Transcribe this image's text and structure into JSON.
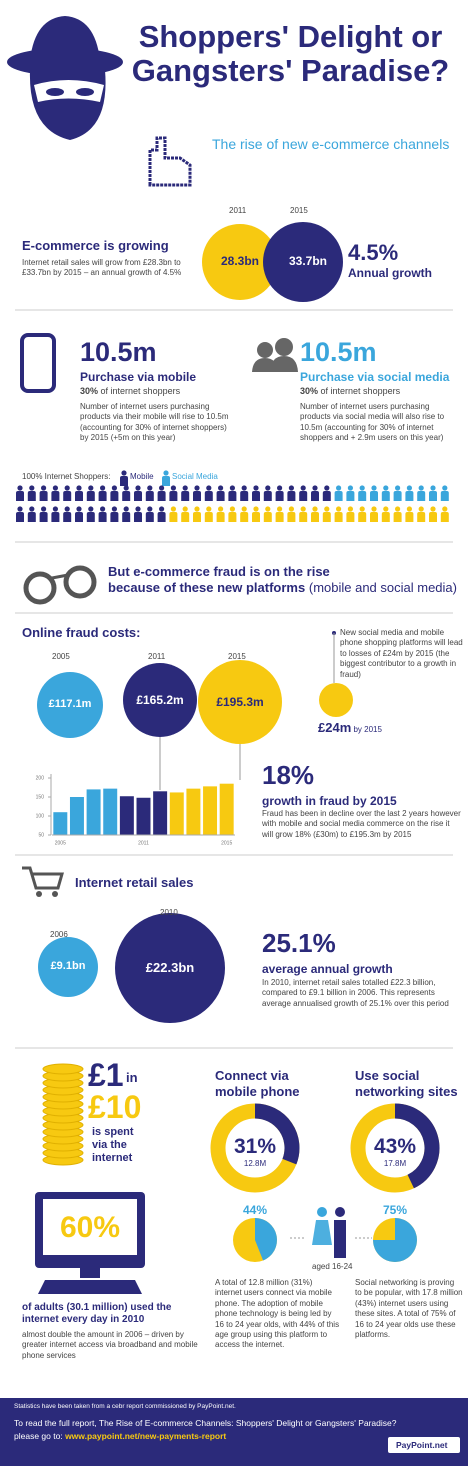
{
  "header": {
    "title": "Shoppers' Delight or Gangsters' Paradise?",
    "subtitle": "The rise of new e-commerce channels"
  },
  "growth": {
    "heading": "E-commerce is growing",
    "text": "Internet retail sales will grow from £28.3bn to £33.7bn by 2015 – an annual growth of 4.5%",
    "circles": [
      {
        "year": "2011",
        "value": "28.3bn"
      },
      {
        "year": "2015",
        "value": "33.7bn"
      }
    ],
    "rate": "4.5%",
    "rate_label": "Annual growth"
  },
  "mobile": {
    "figure": "10.5m",
    "heading": "Purchase via mobile",
    "share": "30%",
    "share_text": "of internet shoppers",
    "text": "Number of internet users purchasing products via their mobile will rise to 10.5m (accounting for 30% of internet shoppers) by 2015 (+5m on this year)"
  },
  "social": {
    "figure": "10.5m",
    "heading": "Purchase via social media",
    "share": "30%",
    "share_text": "of internet shoppers",
    "text": "Number of internet users purchasing products via social media will also rise to 10.5m (accounting for 30% of internet shoppers  and + 2.9m users on this year)"
  },
  "shoppers": {
    "label": "100% Internet Shoppers:",
    "legend": [
      "Mobile",
      "Social Media"
    ]
  },
  "fraud": {
    "heading": "But e-commerce fraud is on the rise",
    "heading2": "because of these new platforms",
    "heading_note": "(mobile and social media)",
    "costs_heading": "Online fraud costs:",
    "circles": [
      {
        "year": "2005",
        "value": "£117.1m"
      },
      {
        "year": "2011",
        "value": "£165.2m"
      },
      {
        "year": "2015",
        "value": "£195.3m"
      }
    ],
    "note": "New social media and mobile phone shopping platforms will lead to losses of £24m by 2015 (the biggest contributor to a growth in fraud)",
    "loss": "£24m",
    "loss_suffix": "by 2015",
    "growth": "18%",
    "growth_label": "growth in fraud by 2015",
    "growth_text": "Fraud has been in decline over the last 2 years however with mobile and social media commerce on the rise it will grow 18% (£30m) to £195.3m by 2015"
  },
  "fraud_chart": {
    "type": "bar",
    "categories": [
      "2005",
      null,
      null,
      null,
      null,
      "2011",
      null,
      null,
      null,
      null,
      "2015"
    ],
    "values": [
      110,
      150,
      170,
      172,
      152,
      148,
      165,
      162,
      172,
      178,
      185
    ],
    "colors": [
      "#3aa6dc",
      "#3aa6dc",
      "#3aa6dc",
      "#3aa6dc",
      "#2b2a7a",
      "#2b2a7a",
      "#2b2a7a",
      "#f7c911",
      "#f7c911",
      "#f7c911",
      "#f7c911"
    ],
    "ylim": [
      50,
      200
    ],
    "yticks": [
      50,
      100,
      150,
      200
    ]
  },
  "retail": {
    "heading": "Internet retail sales",
    "circles": [
      {
        "year": "2006",
        "value": "£9.1bn"
      },
      {
        "year": "2010",
        "value": "£22.3bn"
      }
    ],
    "growth": "25.1%",
    "growth_label": "average annual growth",
    "text": "In 2010, internet retail sales totalled £22.3 billion, compared to £9.1 billion in 2006. This represents average annualised growth of 25.1% over this period"
  },
  "spend": {
    "big1": "£1",
    "in": "in",
    "big2": "£10",
    "text": "is spent via the internet"
  },
  "daily": {
    "figure": "60%",
    "heading": "of adults (30.1 million) used the internet every day in 2010",
    "text": "almost double the amount in 2006 – driven by greater internet access via broadband and mobile phone services"
  },
  "connect": {
    "heading": "Connect via mobile phone",
    "donut": {
      "value": 31,
      "label": "31%",
      "sub": "12.8M"
    },
    "youth": {
      "value": 44,
      "label": "44%"
    },
    "text": "A total of 12.8 million (31%) internet users connect via mobile phone. The adoption of mobile phone technology is being led by 16 to 24 year olds, with 44% of this age group using this platform to access the internet."
  },
  "networking": {
    "heading": "Use social networking sites",
    "donut": {
      "value": 43,
      "label": "43%",
      "sub": "17.8M"
    },
    "youth": {
      "value": 75,
      "label": "75%"
    },
    "text": "Social networking is proving to be popular, with 17.8 million (43%) internet users using these sites. A total of 75% of 16 to 24 year olds use these platforms."
  },
  "age_label": "aged 16-24",
  "footer": {
    "source": "Statistics have been taken from a cebr report commissioned by PayPoint.net.",
    "cta": "To read the full report, The Rise of E-commerce Channels: Shoppers' Delight or Gangsters' Paradise?",
    "link_prefix": "please go to:",
    "link": "www.paypoint.net/new-payments-report",
    "logo": "PayPoint.net"
  }
}
